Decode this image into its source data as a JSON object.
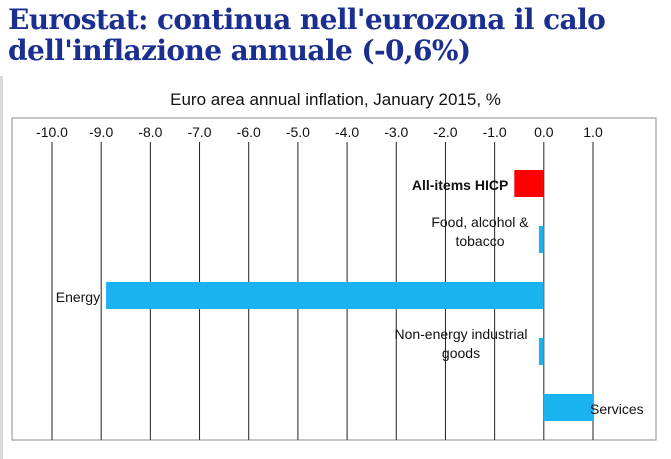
{
  "headline": "Eurostat: continua nell'eurozona il calo dell'inflazione annuale (-0,6%)",
  "chart_data": {
    "type": "bar",
    "orientation": "horizontal",
    "title": "Euro area annual inflation, January 2015, %",
    "xlim": [
      -10.0,
      1.5
    ],
    "ticks": [
      "-10.0",
      "-9.0",
      "-8.0",
      "-7.0",
      "-6.0",
      "-5.0",
      "-4.0",
      "-3.0",
      "-2.0",
      "-1.0",
      "0.0",
      "1.0"
    ],
    "tick_values": [
      -10,
      -9,
      -8,
      -7,
      -6,
      -5,
      -4,
      -3,
      -2,
      -1,
      0,
      1
    ],
    "categories": [
      [
        "All-items HICP"
      ],
      [
        "Food, alcohol &",
        "tobacco"
      ],
      [
        "Energy"
      ],
      [
        "Non-energy industrial",
        "goods"
      ],
      [
        "Services"
      ]
    ],
    "values": [
      -0.6,
      -0.1,
      -8.9,
      -0.1,
      1.0
    ],
    "colors": [
      "#ff0000",
      "#1ab2f0",
      "#1ab2f0",
      "#1ab2f0",
      "#1ab2f0"
    ],
    "grid": true,
    "ticks_position": "top",
    "legend": false
  }
}
